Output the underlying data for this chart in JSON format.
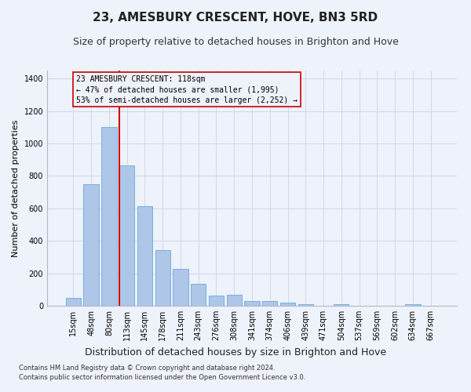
{
  "title": "23, AMESBURY CRESCENT, HOVE, BN3 5RD",
  "subtitle": "Size of property relative to detached houses in Brighton and Hove",
  "xlabel": "Distribution of detached houses by size in Brighton and Hove",
  "ylabel": "Number of detached properties",
  "footnote1": "Contains HM Land Registry data © Crown copyright and database right 2024.",
  "footnote2": "Contains public sector information licensed under the Open Government Licence v3.0.",
  "bar_labels": [
    "15sqm",
    "48sqm",
    "80sqm",
    "113sqm",
    "145sqm",
    "178sqm",
    "211sqm",
    "243sqm",
    "276sqm",
    "308sqm",
    "341sqm",
    "374sqm",
    "406sqm",
    "439sqm",
    "471sqm",
    "504sqm",
    "537sqm",
    "569sqm",
    "602sqm",
    "634sqm",
    "667sqm"
  ],
  "bar_values": [
    50,
    750,
    1100,
    865,
    615,
    345,
    225,
    135,
    65,
    70,
    30,
    30,
    20,
    12,
    0,
    10,
    0,
    0,
    0,
    10,
    0
  ],
  "bar_color": "#aec6e8",
  "bar_edgecolor": "#6aaad4",
  "annotation_label": "23 AMESBURY CRESCENT: 118sqm",
  "annotation_smaller": "← 47% of detached houses are smaller (1,995)",
  "annotation_larger": "53% of semi-detached houses are larger (2,252) →",
  "vline_color": "#cc0000",
  "box_edgecolor": "#cc0000",
  "ylim": [
    0,
    1450
  ],
  "grid_color": "#d0d8e8",
  "background_color": "#eef2fa",
  "title_fontsize": 11,
  "subtitle_fontsize": 9,
  "tick_fontsize": 7,
  "ylabel_fontsize": 8,
  "xlabel_fontsize": 9,
  "footnote_fontsize": 6
}
